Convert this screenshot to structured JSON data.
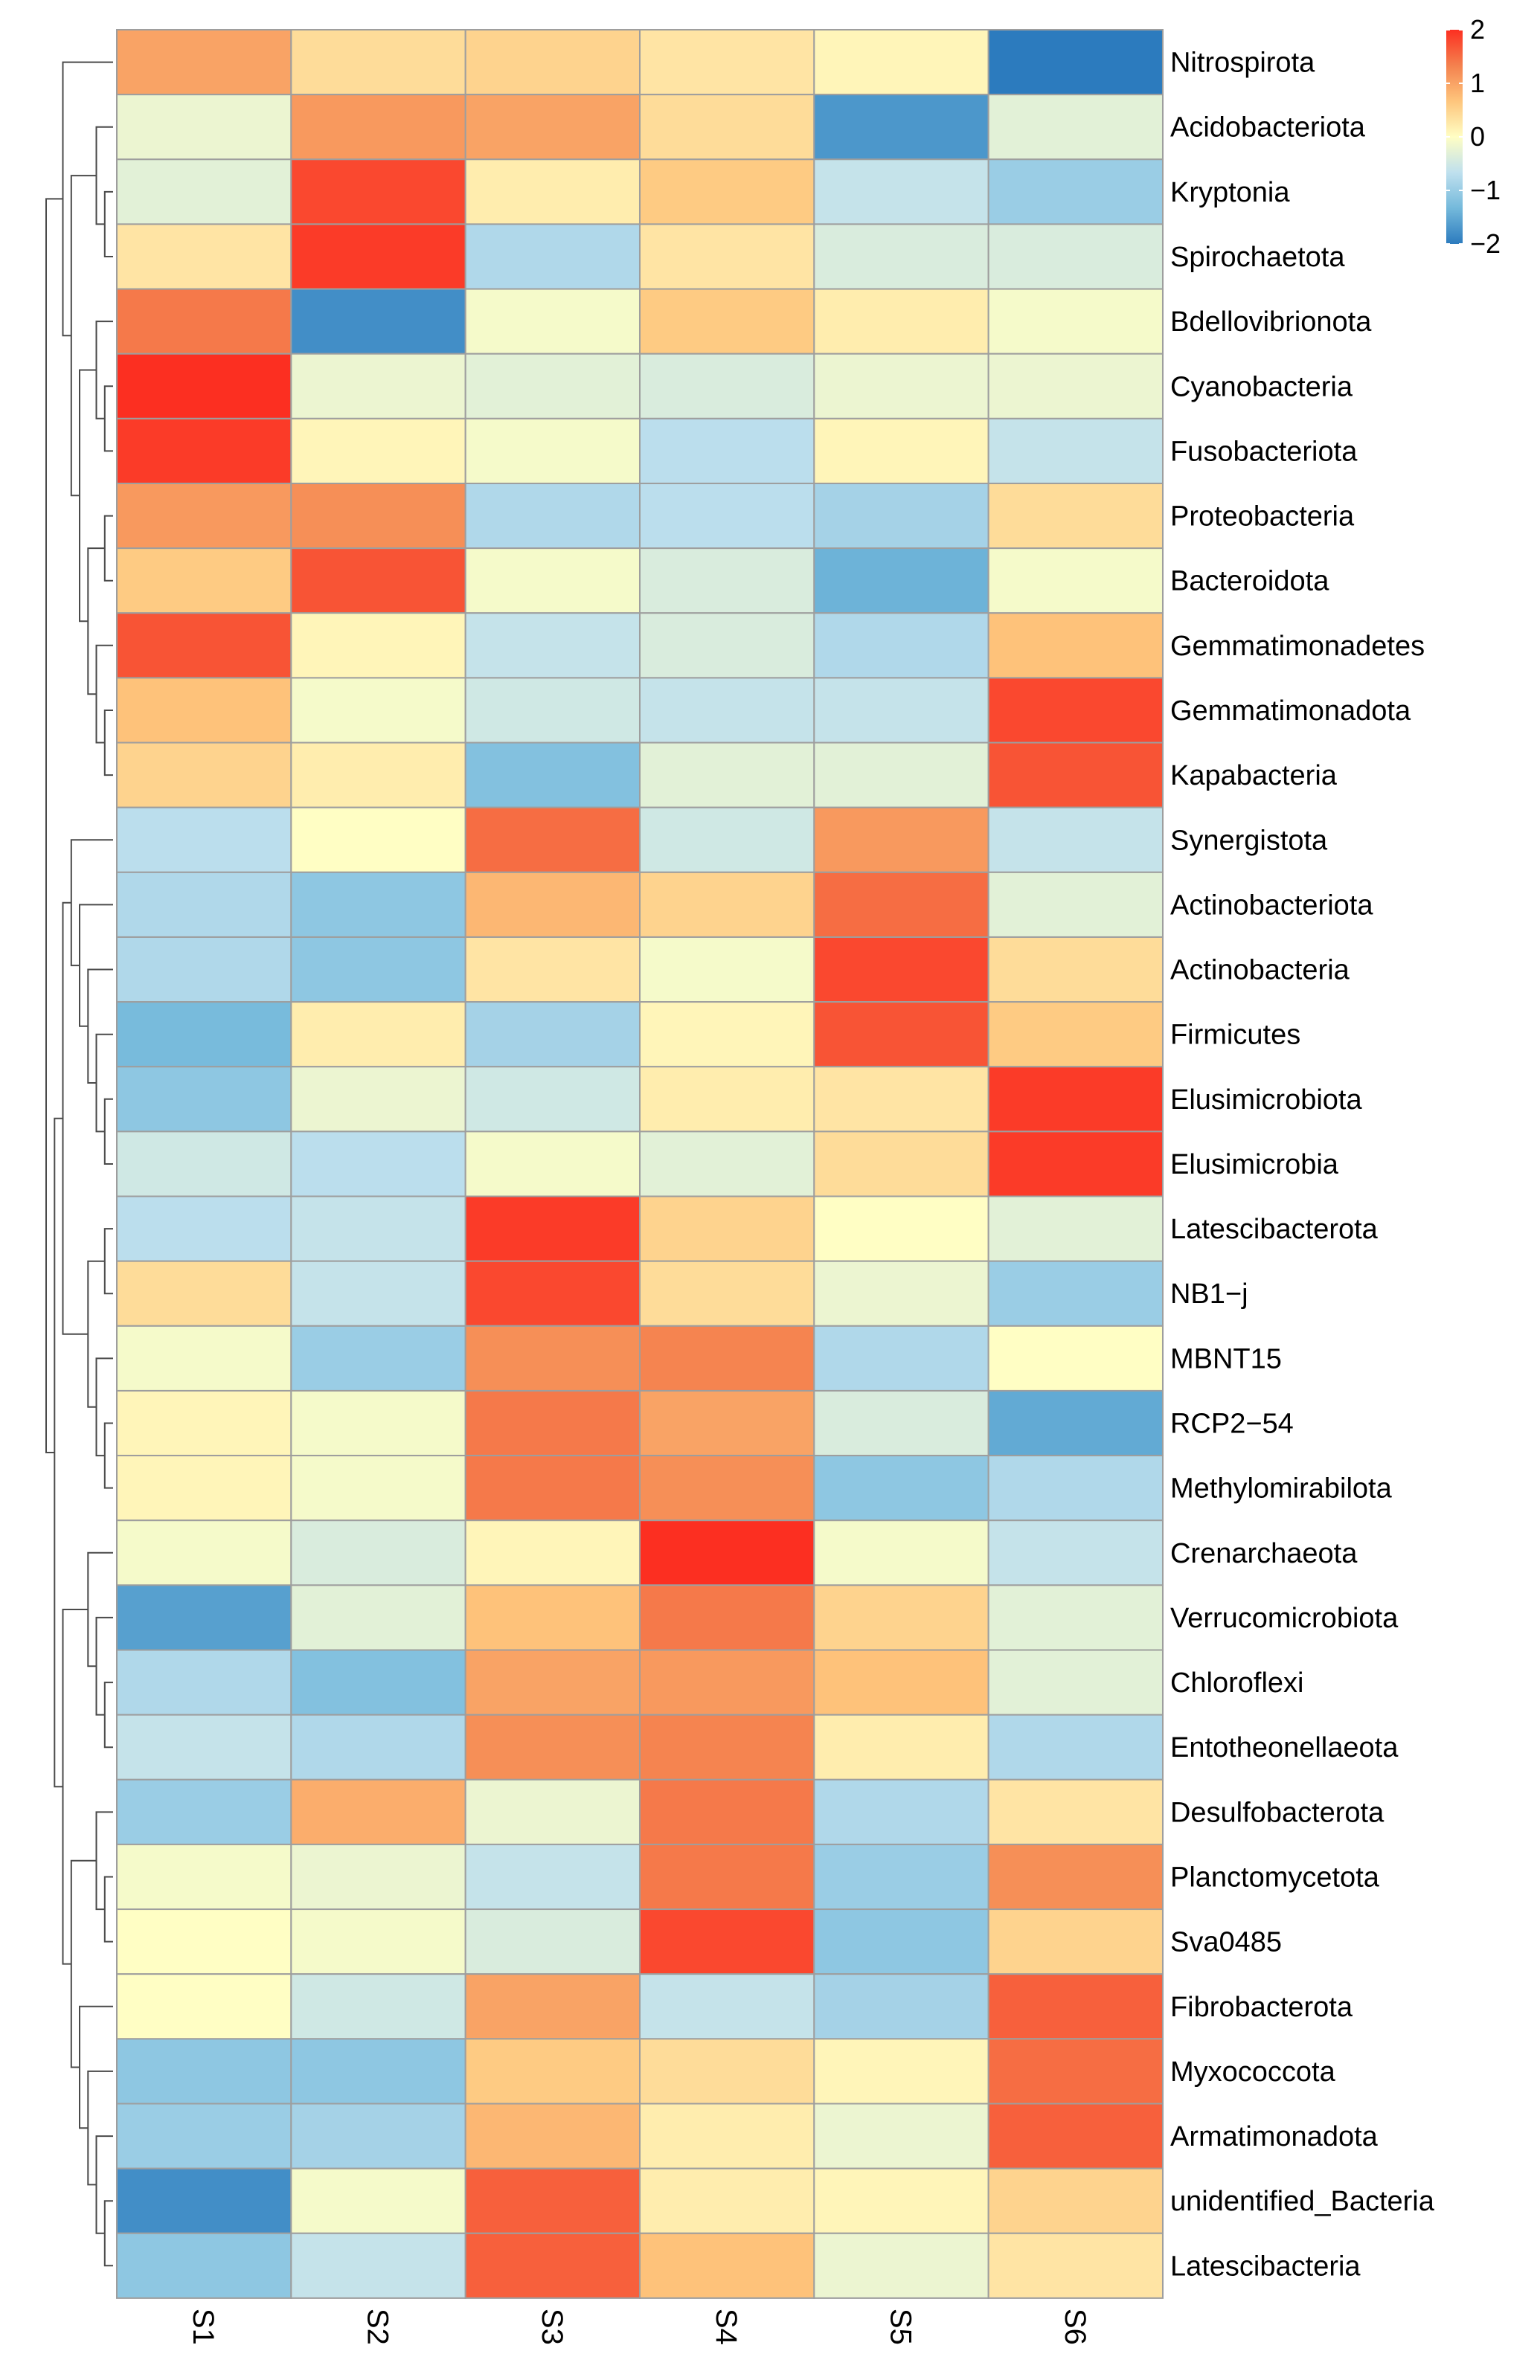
{
  "chart_data": {
    "type": "heatmap",
    "columns": [
      "S1",
      "S2",
      "S3",
      "S4",
      "S5",
      "S6"
    ],
    "rows": [
      {
        "name": "Nitrospirota",
        "values": [
          1.0,
          0.4,
          0.5,
          0.3,
          0.1,
          -2.0
        ]
      },
      {
        "name": "Acidobacteriota",
        "values": [
          -0.2,
          1.1,
          1.0,
          0.4,
          -1.7,
          -0.3
        ]
      },
      {
        "name": "Kryptonia",
        "values": [
          -0.3,
          1.8,
          0.2,
          0.6,
          -0.6,
          -1.0
        ]
      },
      {
        "name": "Spirochaetota",
        "values": [
          0.3,
          1.9,
          -0.8,
          0.3,
          -0.4,
          -0.4
        ]
      },
      {
        "name": "Bdellovibrionota",
        "values": [
          1.4,
          -1.8,
          -0.1,
          0.6,
          0.2,
          -0.1
        ]
      },
      {
        "name": "Cyanobacteria",
        "values": [
          2.0,
          -0.2,
          -0.3,
          -0.4,
          -0.2,
          -0.2
        ]
      },
      {
        "name": "Fusobacteriota",
        "values": [
          1.9,
          0.1,
          -0.1,
          -0.7,
          0.1,
          -0.6
        ]
      },
      {
        "name": "Proteobacteria",
        "values": [
          1.1,
          1.2,
          -0.8,
          -0.7,
          -0.9,
          0.4
        ]
      },
      {
        "name": "Bacteroidota",
        "values": [
          0.6,
          1.7,
          -0.1,
          -0.4,
          -1.4,
          -0.1
        ]
      },
      {
        "name": "Gemmatimonadetes",
        "values": [
          1.7,
          0.1,
          -0.6,
          -0.4,
          -0.8,
          0.7
        ]
      },
      {
        "name": "Gemmatimonadota",
        "values": [
          0.7,
          -0.1,
          -0.5,
          -0.6,
          -0.6,
          1.8
        ]
      },
      {
        "name": "Kapabacteria",
        "values": [
          0.5,
          0.2,
          -1.2,
          -0.3,
          -0.3,
          1.7
        ]
      },
      {
        "name": "Synergistota",
        "values": [
          -0.7,
          0.0,
          1.5,
          -0.5,
          1.1,
          -0.6
        ]
      },
      {
        "name": "Actinobacteriota",
        "values": [
          -0.8,
          -1.1,
          0.8,
          0.5,
          1.5,
          -0.3
        ]
      },
      {
        "name": "Actinobacteria",
        "values": [
          -0.8,
          -1.1,
          0.3,
          -0.1,
          1.8,
          0.4
        ]
      },
      {
        "name": "Firmicutes",
        "values": [
          -1.3,
          0.2,
          -0.9,
          0.1,
          1.7,
          0.6
        ]
      },
      {
        "name": "Elusimicrobiota",
        "values": [
          -1.1,
          -0.2,
          -0.5,
          0.2,
          0.3,
          1.9
        ]
      },
      {
        "name": "Elusimicrobia",
        "values": [
          -0.5,
          -0.7,
          -0.1,
          -0.3,
          0.4,
          1.9
        ]
      },
      {
        "name": "Latescibacterota",
        "values": [
          -0.7,
          -0.6,
          1.9,
          0.5,
          0.0,
          -0.3
        ]
      },
      {
        "name": "NB1−j",
        "values": [
          0.4,
          -0.6,
          1.8,
          0.4,
          -0.2,
          -1.0
        ]
      },
      {
        "name": "MBNT15",
        "values": [
          -0.1,
          -1.0,
          1.2,
          1.3,
          -0.8,
          0.0
        ]
      },
      {
        "name": "RCP2−54",
        "values": [
          0.1,
          -0.1,
          1.4,
          1.0,
          -0.4,
          -1.5
        ]
      },
      {
        "name": "Methylomirabilota",
        "values": [
          0.1,
          -0.1,
          1.4,
          1.2,
          -1.1,
          -0.8
        ]
      },
      {
        "name": "Crenarchaeota",
        "values": [
          -0.1,
          -0.4,
          0.1,
          2.0,
          -0.1,
          -0.6
        ]
      },
      {
        "name": "Verrucomicrobiota",
        "values": [
          -1.6,
          -0.3,
          0.7,
          1.4,
          0.5,
          -0.3
        ]
      },
      {
        "name": "Chloroflexi",
        "values": [
          -0.8,
          -1.2,
          1.0,
          1.1,
          0.7,
          -0.3
        ]
      },
      {
        "name": "Entotheonellaeota",
        "values": [
          -0.6,
          -0.8,
          1.2,
          1.3,
          0.2,
          -0.8
        ]
      },
      {
        "name": "Desulfobacterota",
        "values": [
          -1.0,
          0.9,
          -0.2,
          1.4,
          -0.8,
          0.3
        ]
      },
      {
        "name": "Planctomycetota",
        "values": [
          -0.1,
          -0.2,
          -0.6,
          1.4,
          -1.0,
          1.2
        ]
      },
      {
        "name": "Sva0485",
        "values": [
          0.0,
          -0.1,
          -0.4,
          1.8,
          -1.1,
          0.5
        ]
      },
      {
        "name": "Fibrobacterota",
        "values": [
          0.0,
          -0.5,
          1.0,
          -0.6,
          -0.9,
          1.6
        ]
      },
      {
        "name": "Myxococcota",
        "values": [
          -1.1,
          -1.1,
          0.6,
          0.4,
          0.1,
          1.5
        ]
      },
      {
        "name": "Armatimonadota",
        "values": [
          -1.0,
          -0.9,
          0.8,
          0.2,
          -0.2,
          1.6
        ]
      },
      {
        "name": "unidentified_Bacteria",
        "values": [
          -1.8,
          -0.1,
          1.6,
          0.2,
          0.1,
          0.5
        ]
      },
      {
        "name": "Latescibacteria",
        "values": [
          -1.1,
          -0.6,
          1.6,
          0.7,
          -0.2,
          0.3
        ]
      }
    ],
    "color_scale": {
      "min": -2,
      "max": 2,
      "stops": [
        "#2c7bbe",
        "#74b9db",
        "#bfe0ee",
        "#fffec4",
        "#fec57c",
        "#f4814e",
        "#fc2f21"
      ],
      "ticks": [
        "2",
        "1",
        "0",
        "−1",
        "−2"
      ]
    },
    "row_dendrogram": true,
    "legend_position": "top-right"
  }
}
